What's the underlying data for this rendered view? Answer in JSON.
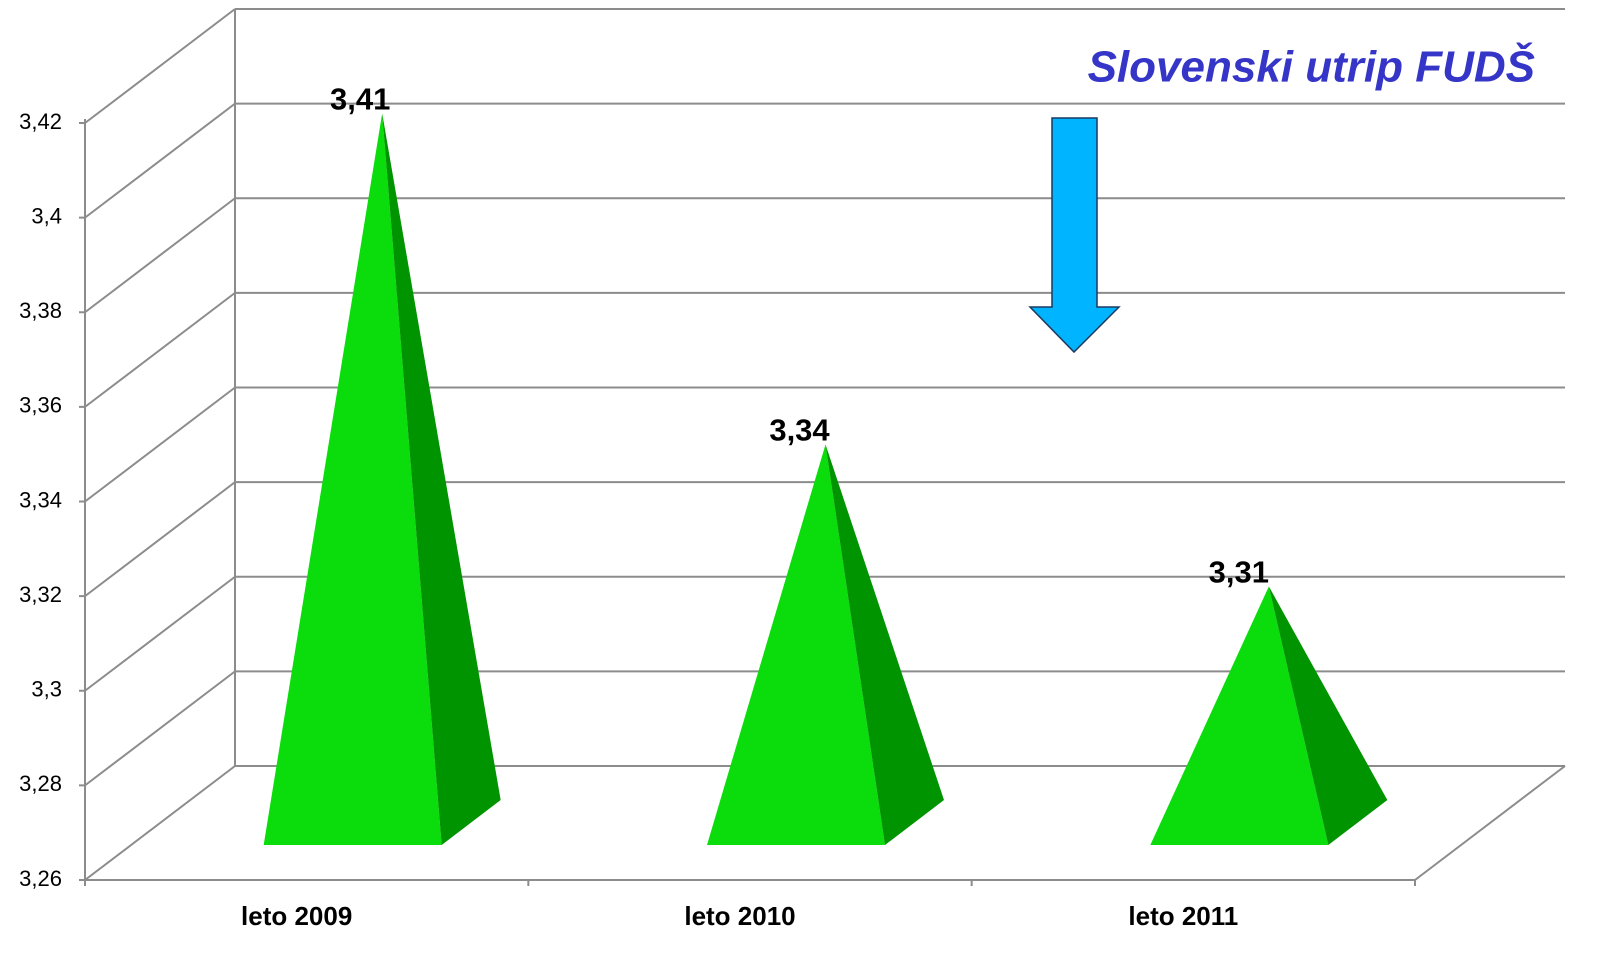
{
  "chart_data": {
    "type": "pyramid3d",
    "title": "Slovenski utrip FUDŠ",
    "categories": [
      "leto 2009",
      "leto 2010",
      "leto 2011"
    ],
    "values": [
      3.41,
      3.34,
      3.31
    ],
    "value_labels": [
      "3,41",
      "3,34",
      "3,31"
    ],
    "color": "#0bdc0b",
    "ylim": [
      3.26,
      3.42
    ],
    "yticks": [
      {
        "value": 3.26,
        "label": "3,26"
      },
      {
        "value": 3.28,
        "label": "3,28"
      },
      {
        "value": 3.3,
        "label": "3,3"
      },
      {
        "value": 3.32,
        "label": "3,32"
      },
      {
        "value": 3.34,
        "label": "3,34"
      },
      {
        "value": 3.36,
        "label": "3,36"
      },
      {
        "value": 3.38,
        "label": "3,38"
      },
      {
        "value": 3.4,
        "label": "3,4"
      },
      {
        "value": 3.42,
        "label": "3,42"
      }
    ],
    "grid": true
  }
}
